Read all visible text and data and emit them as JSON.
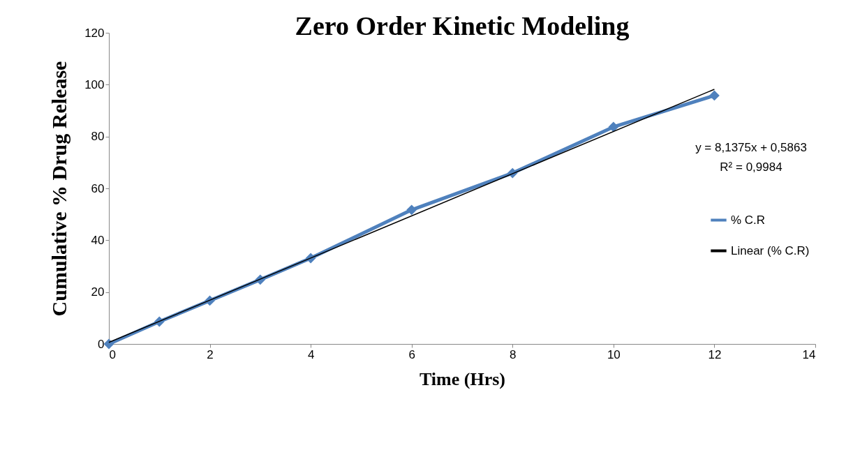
{
  "chart_data": {
    "type": "line",
    "title": "Zero Order Kinetic Modeling",
    "xlabel": "Time (Hrs)",
    "ylabel": "Cumulative % Drug Release",
    "x": [
      0,
      1,
      2,
      3,
      4,
      6,
      8,
      10,
      12
    ],
    "series": [
      {
        "name": "% C.R",
        "color": "#4f81bd",
        "values": [
          0,
          8.6,
          16.7,
          24.8,
          33.1,
          51.7,
          65.9,
          83.7,
          95.8
        ],
        "marker": "diamond"
      },
      {
        "name": "Linear (% C.R)",
        "color": "#000000",
        "x": [
          0,
          12
        ],
        "values": [
          0.6,
          98.2
        ],
        "marker": "none"
      }
    ],
    "annotations": [
      "y = 8,1375x + 0,5863",
      "R² = 0,9984"
    ],
    "xlim": [
      0,
      14
    ],
    "xticks": [
      0,
      2,
      4,
      6,
      8,
      10,
      12,
      14
    ],
    "ylim": [
      0,
      120
    ],
    "yticks": [
      0,
      20,
      40,
      60,
      80,
      100,
      120
    ],
    "grid": false,
    "legend": "right",
    "line_style": "solid"
  }
}
